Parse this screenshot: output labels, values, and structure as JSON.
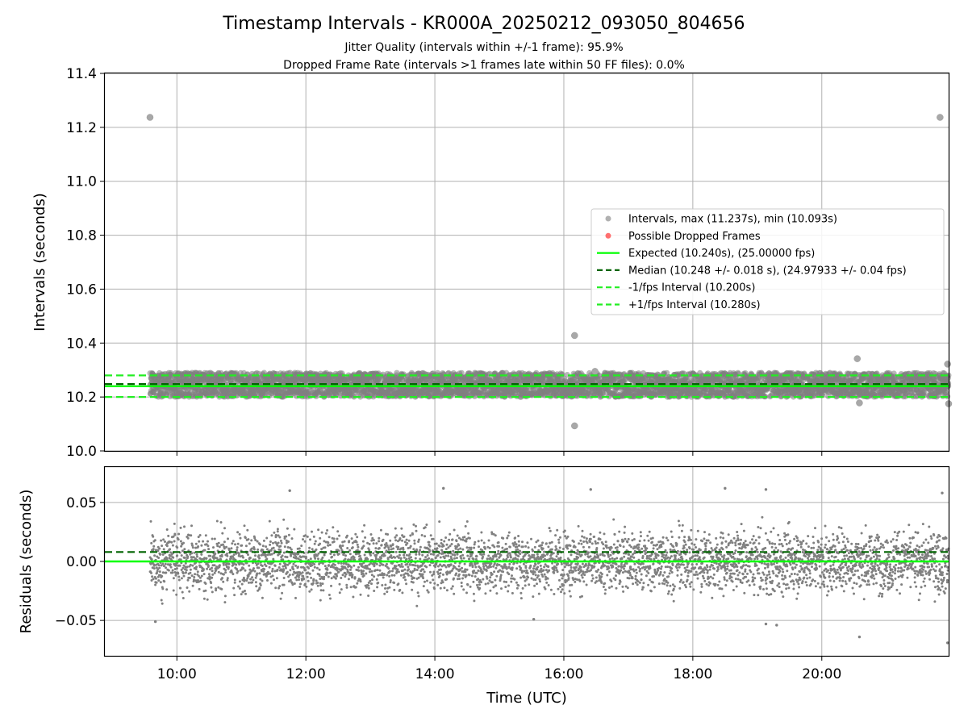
{
  "chart_data": {
    "title": "Timestamp Intervals - KR000A_20250212_093050_804656",
    "subtitle_lines": [
      "Jitter Quality (intervals within +/-1 frame): 95.9%",
      "Dropped Frame Rate (intervals >1 frames late within 50 FF files): 0.0%"
    ],
    "colors": {
      "points": "#808080",
      "dropped": "#ff6060",
      "expected": "#00ff00",
      "median": "#006400",
      "fps_interval": "#22ee22",
      "grid": "#b0b0b0"
    },
    "top": {
      "type": "scatter",
      "ylabel": "Intervals (seconds)",
      "ylim": [
        10.0,
        11.4
      ],
      "y_ticks": [
        "10.0",
        "10.2",
        "10.4",
        "10.6",
        "10.8",
        "11.0",
        "11.2",
        "11.4"
      ],
      "grid": true,
      "legend_position": "center-right",
      "expected": 10.24,
      "median": 10.248,
      "minus_fps": 10.2,
      "plus_fps": 10.28,
      "interval_band": [
        10.2,
        10.29
      ],
      "outliers": [
        {
          "x": "09:35",
          "y": 11.237
        },
        {
          "x": "21:50",
          "y": 11.237
        },
        {
          "x": "16:10",
          "y": 10.428
        },
        {
          "x": "16:10",
          "y": 10.093
        },
        {
          "x": "20:33",
          "y": 10.342
        },
        {
          "x": "20:35",
          "y": 10.178
        },
        {
          "x": "21:57",
          "y": 10.322
        },
        {
          "x": "21:58",
          "y": 10.175
        },
        {
          "x": "16:29",
          "y": 10.295
        }
      ],
      "legend": [
        {
          "label": "Intervals, max (11.237s), min (10.093s)",
          "marker": "dot",
          "color": "#a8a8a8"
        },
        {
          "label": "Possible Dropped Frames",
          "marker": "dot",
          "color": "#ff6060"
        },
        {
          "label": "Expected (10.240s), (25.00000 fps)",
          "marker": "solid",
          "color": "#00ff00"
        },
        {
          "label": "Median (10.248 +/- 0.018 s), (24.97933 +/- 0.04 fps)",
          "marker": "dashed",
          "color": "#006400"
        },
        {
          "label": "-1/fps Interval (10.200s)",
          "marker": "dashed",
          "color": "#22ee22"
        },
        {
          "label": "+1/fps Interval (10.280s)",
          "marker": "dashed",
          "color": "#22ee22"
        }
      ]
    },
    "bottom": {
      "type": "scatter",
      "ylabel": "Residuals (seconds)",
      "ylim": [
        -0.08,
        0.08
      ],
      "y_ticks": [
        {
          "value": 0.05,
          "label": "0.05"
        },
        {
          "value": 0.0,
          "label": "0.00"
        },
        {
          "value": -0.05,
          "label": "−0.05"
        }
      ],
      "grid": true,
      "zero_line": 0.0,
      "median_offset": 0.008,
      "residual_spread": 0.025,
      "outliers": [
        {
          "x": "09:40",
          "y": -0.051
        },
        {
          "x": "11:45",
          "y": 0.06
        },
        {
          "x": "14:08",
          "y": 0.062
        },
        {
          "x": "15:32",
          "y": -0.049
        },
        {
          "x": "16:25",
          "y": 0.061
        },
        {
          "x": "18:30",
          "y": 0.062
        },
        {
          "x": "19:08",
          "y": 0.061
        },
        {
          "x": "19:08",
          "y": -0.053
        },
        {
          "x": "19:18",
          "y": -0.054
        },
        {
          "x": "20:35",
          "y": -0.064
        },
        {
          "x": "21:52",
          "y": 0.058
        },
        {
          "x": "21:57",
          "y": -0.069
        }
      ]
    },
    "x_axis": {
      "label": "Time (UTC)",
      "range": [
        "08:53",
        "21:58"
      ],
      "data_range": [
        "09:35",
        "21:58"
      ],
      "ticks": [
        "10:00",
        "12:00",
        "14:00",
        "16:00",
        "18:00",
        "20:00"
      ],
      "point_count": 4360
    }
  }
}
